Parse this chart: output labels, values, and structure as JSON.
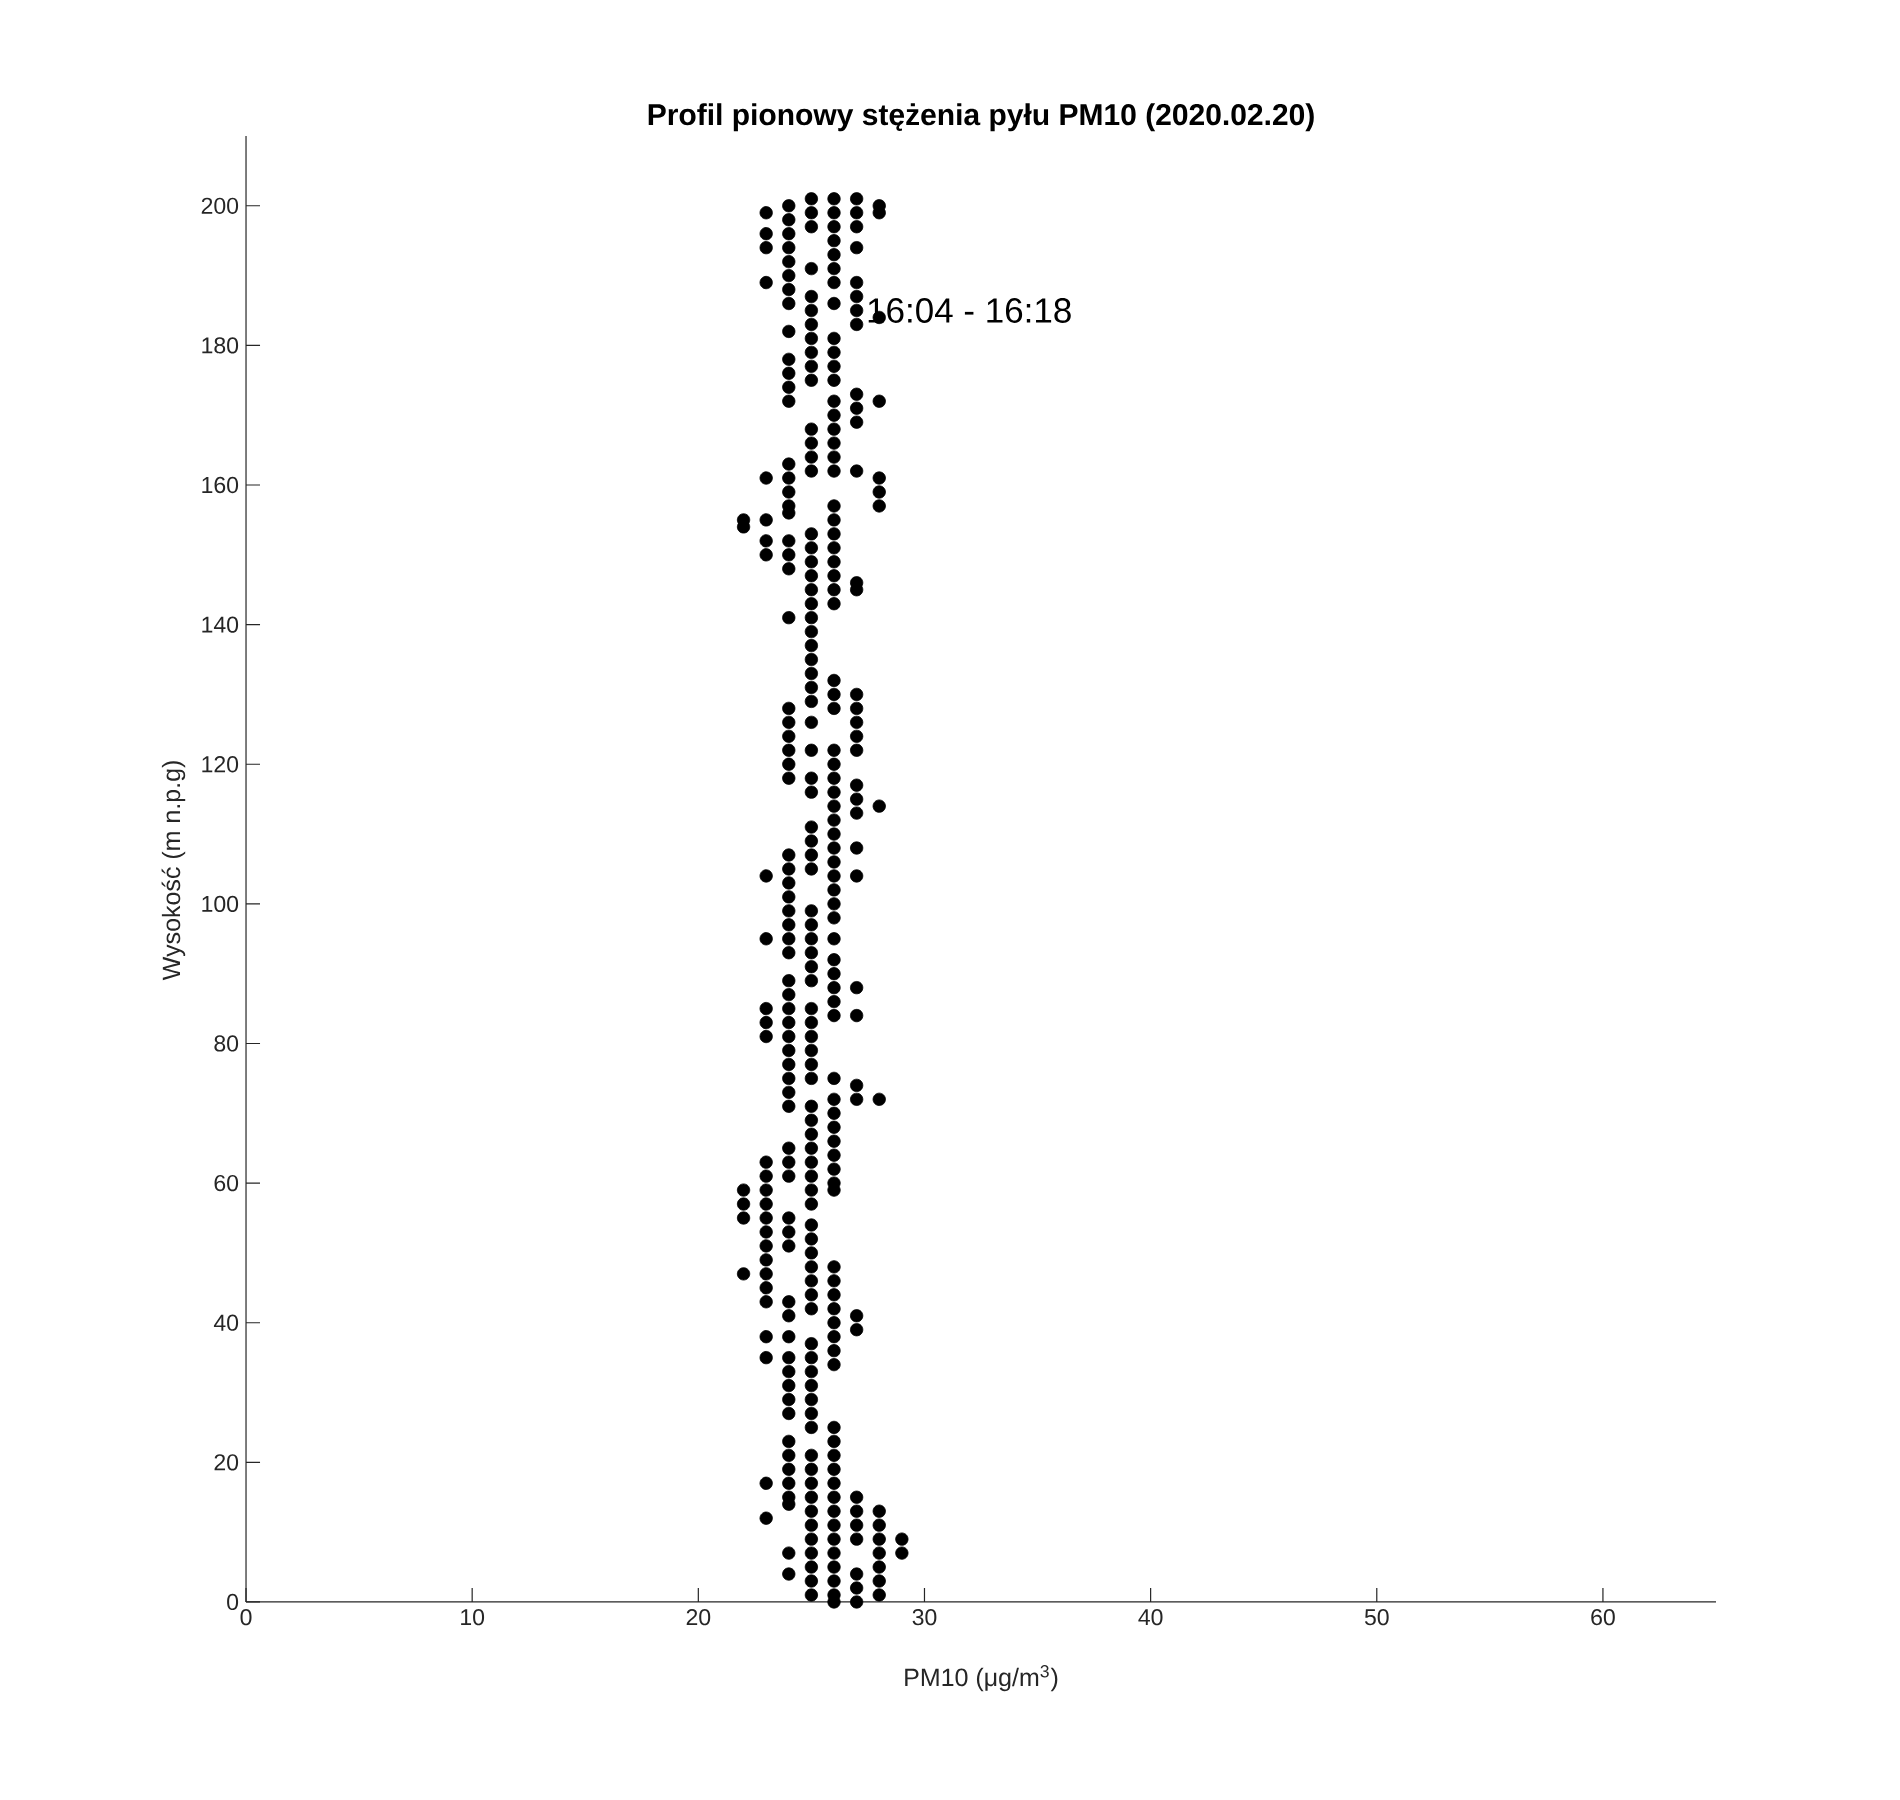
{
  "chart_data": {
    "type": "scatter",
    "title": "Profil pionowy stężenia pyłu PM10 (2020.02.20)",
    "xlabel": "PM10 (μg/m$^{3}$)",
    "ylabel": "Wysokość (m n.p.g)",
    "annotations": [
      {
        "text": "16:04 - 16:18",
        "x": 27.4,
        "y": 185
      }
    ],
    "xlim": [
      0,
      65
    ],
    "ylim": [
      0,
      210
    ],
    "xticks": [
      0,
      10,
      20,
      30,
      40,
      50,
      60
    ],
    "yticks": [
      0,
      20,
      40,
      60,
      80,
      100,
      120,
      140,
      160,
      180,
      200
    ],
    "marker": "circle",
    "color": "#000000",
    "x": [
      22,
      22,
      22,
      22,
      22,
      22,
      23,
      23,
      23,
      23,
      23,
      23,
      23,
      23,
      23,
      23,
      23,
      23,
      23,
      23,
      23,
      23,
      23,
      23,
      23,
      23,
      23,
      23,
      23,
      23,
      23,
      23,
      23,
      23,
      24,
      24,
      24,
      24,
      24,
      24,
      24,
      24,
      24,
      24,
      24,
      24,
      24,
      24,
      24,
      24,
      24,
      24,
      24,
      24,
      24,
      24,
      24,
      24,
      24,
      24,
      24,
      24,
      24,
      24,
      24,
      24,
      24,
      24,
      24,
      24,
      24,
      24,
      24,
      24,
      24,
      24,
      24,
      24,
      24,
      24,
      24,
      24,
      24,
      24,
      24,
      24,
      24,
      24,
      24,
      24,
      24,
      24,
      24,
      24,
      24,
      24,
      24,
      24,
      24,
      24,
      24,
      24,
      25,
      25,
      25,
      25,
      25,
      25,
      25,
      25,
      25,
      25,
      25,
      25,
      25,
      25,
      25,
      25,
      25,
      25,
      25,
      25,
      25,
      25,
      25,
      25,
      25,
      25,
      25,
      25,
      25,
      25,
      25,
      25,
      25,
      25,
      25,
      25,
      25,
      25,
      25,
      25,
      25,
      25,
      25,
      25,
      25,
      25,
      25,
      25,
      25,
      25,
      25,
      25,
      25,
      25,
      25,
      25,
      25,
      25,
      25,
      25,
      25,
      25,
      25,
      25,
      25,
      25,
      25,
      25,
      25,
      25,
      25,
      25,
      25,
      25,
      25,
      25,
      25,
      25,
      25,
      25,
      25,
      26,
      26,
      26,
      26,
      26,
      26,
      26,
      26,
      26,
      26,
      26,
      26,
      26,
      26,
      26,
      26,
      26,
      26,
      26,
      26,
      26,
      26,
      26,
      26,
      26,
      26,
      26,
      26,
      26,
      26,
      26,
      26,
      26,
      26,
      26,
      26,
      26,
      26,
      26,
      26,
      26,
      26,
      26,
      26,
      26,
      26,
      26,
      26,
      26,
      26,
      26,
      26,
      26,
      26,
      26,
      26,
      26,
      26,
      26,
      26,
      26,
      26,
      26,
      26,
      26,
      26,
      26,
      26,
      26,
      26,
      26,
      26,
      26,
      26,
      26,
      26,
      26,
      26,
      26,
      27,
      27,
      27,
      27,
      27,
      27,
      27,
      27,
      27,
      27,
      27,
      27,
      27,
      27,
      27,
      27,
      27,
      27,
      27,
      27,
      27,
      27,
      27,
      27,
      27,
      27,
      27,
      27,
      27,
      27,
      27,
      27,
      27,
      27,
      27,
      27,
      27,
      28,
      28,
      28,
      28,
      28,
      28,
      28,
      28,
      28,
      28,
      28,
      28,
      28,
      28,
      28,
      28,
      29,
      29
    ],
    "values": [
      155,
      154,
      59,
      57,
      55,
      47,
      199,
      196,
      194,
      189,
      161,
      155,
      152,
      150,
      104,
      95,
      85,
      83,
      81,
      63,
      61,
      59,
      57,
      55,
      53,
      51,
      49,
      47,
      45,
      43,
      38,
      35,
      17,
      12,
      200,
      198,
      196,
      194,
      192,
      190,
      188,
      186,
      182,
      178,
      176,
      174,
      172,
      163,
      161,
      159,
      157,
      156,
      152,
      150,
      148,
      141,
      128,
      126,
      124,
      122,
      120,
      118,
      107,
      105,
      103,
      101,
      99,
      97,
      95,
      93,
      89,
      87,
      85,
      83,
      81,
      79,
      77,
      75,
      73,
      71,
      65,
      63,
      61,
      55,
      53,
      51,
      43,
      41,
      38,
      35,
      33,
      31,
      29,
      27,
      23,
      21,
      19,
      17,
      15,
      14,
      7,
      4,
      201,
      199,
      197,
      191,
      187,
      185,
      183,
      181,
      179,
      177,
      175,
      168,
      166,
      164,
      162,
      153,
      151,
      149,
      147,
      145,
      143,
      141,
      139,
      137,
      135,
      133,
      131,
      129,
      126,
      122,
      118,
      116,
      111,
      109,
      107,
      105,
      99,
      97,
      95,
      93,
      91,
      89,
      85,
      83,
      81,
      79,
      77,
      75,
      71,
      69,
      67,
      65,
      63,
      61,
      59,
      57,
      54,
      52,
      50,
      48,
      46,
      44,
      42,
      37,
      35,
      33,
      31,
      29,
      27,
      25,
      21,
      19,
      17,
      15,
      13,
      11,
      9,
      7,
      5,
      3,
      1,
      201,
      199,
      197,
      195,
      193,
      191,
      189,
      186,
      181,
      179,
      177,
      175,
      172,
      170,
      168,
      166,
      164,
      162,
      157,
      155,
      153,
      151,
      149,
      147,
      145,
      143,
      132,
      130,
      128,
      122,
      120,
      118,
      116,
      114,
      112,
      110,
      108,
      106,
      104,
      102,
      100,
      98,
      95,
      92,
      90,
      88,
      86,
      84,
      75,
      72,
      70,
      68,
      66,
      64,
      62,
      60,
      59,
      48,
      46,
      44,
      42,
      40,
      38,
      36,
      34,
      25,
      23,
      21,
      19,
      17,
      15,
      13,
      11,
      9,
      7,
      5,
      3,
      1,
      0,
      201,
      199,
      197,
      194,
      189,
      187,
      185,
      183,
      173,
      171,
      169,
      162,
      146,
      145,
      130,
      128,
      126,
      124,
      122,
      117,
      115,
      113,
      108,
      104,
      88,
      84,
      74,
      72,
      41,
      39,
      15,
      13,
      11,
      9,
      4,
      2,
      0,
      200,
      199,
      184,
      172,
      161,
      159,
      157,
      114,
      72,
      13,
      11,
      9,
      7,
      5,
      3,
      1,
      9,
      7
    ]
  }
}
